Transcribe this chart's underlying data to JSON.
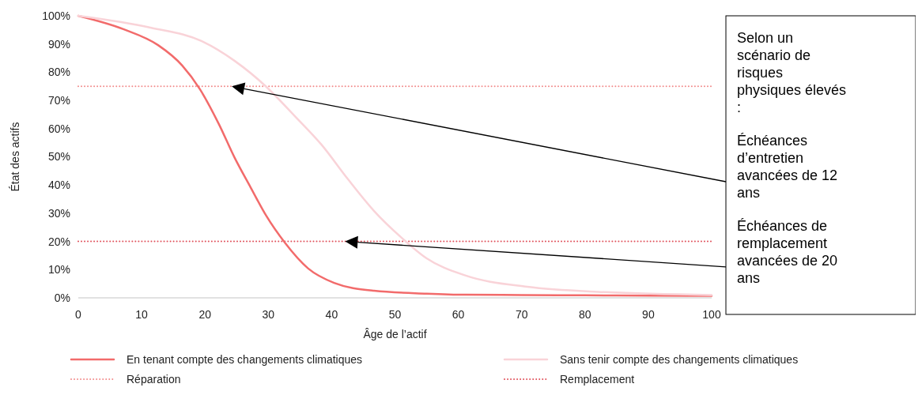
{
  "chart_data": {
    "type": "line",
    "xlabel": "Âge de l’actif",
    "ylabel": "État des actifs",
    "xlim": [
      0,
      100
    ],
    "xticks": [
      0,
      10,
      20,
      30,
      40,
      50,
      60,
      70,
      80,
      90,
      100
    ],
    "ylim": [
      0,
      100
    ],
    "yticks": [
      {
        "value": 0,
        "label": "0%"
      },
      {
        "value": 10,
        "label": "10%"
      },
      {
        "value": 20,
        "label": "20%"
      },
      {
        "value": 30,
        "label": "30%"
      },
      {
        "value": 40,
        "label": "40%"
      },
      {
        "value": 50,
        "label": "50%"
      },
      {
        "value": 60,
        "label": "60%"
      },
      {
        "value": 70,
        "label": "70%"
      },
      {
        "value": 80,
        "label": "80%"
      },
      {
        "value": 90,
        "label": "90%"
      },
      {
        "value": 100,
        "label": "100%"
      }
    ],
    "series": [
      {
        "name": "En tenant compte des changements climatiques",
        "color": "#f26b6b",
        "x": [
          0,
          7.2,
          12.6,
          16.4,
          19.2,
          22.2,
          24.7,
          27.2,
          29.7,
          32.6,
          36.3,
          40.4,
          46.7,
          55,
          61,
          70,
          80,
          90,
          100
        ],
        "values": [
          100,
          95.2,
          89.6,
          82.4,
          74,
          61.6,
          49.6,
          39.2,
          29,
          19.6,
          10.4,
          5.3,
          2.5,
          1.5,
          1.1,
          1,
          0.9,
          0.8,
          0.7
        ]
      },
      {
        "name": "Sans tenir compte des changements climatiques",
        "color": "#f9d3d8",
        "x": [
          0,
          11.4,
          19.7,
          24.7,
          29.7,
          34.2,
          38.4,
          42.6,
          46.7,
          50.9,
          55,
          61,
          70.9,
          83.4,
          100
        ],
        "values": [
          100,
          95.8,
          90.8,
          84,
          74.8,
          64.4,
          54.3,
          42,
          30.8,
          21.6,
          14,
          8,
          3.9,
          2,
          1
        ]
      }
    ],
    "ref_lines": [
      {
        "axis": "y",
        "value": 75,
        "label": "Réparation",
        "color": "#f28b8b",
        "line_style": "dotted"
      },
      {
        "axis": "y",
        "value": 20,
        "label": "Remplacement",
        "color": "#e0505a",
        "line_style": "dotted"
      }
    ],
    "annotations": [
      "Selon un scénario de risques physiques élevés :",
      "Échéances d’entretien avancées de 12 ans",
      "Échéances de remplacement avancées de 20 ans"
    ],
    "legend": "bottom",
    "marker": "none",
    "line_style": "solid",
    "grid": false
  }
}
